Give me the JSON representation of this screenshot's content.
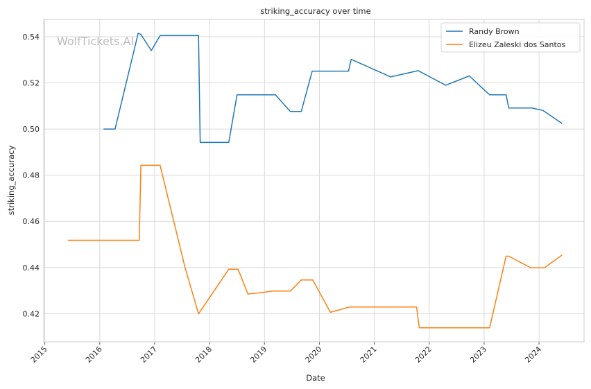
{
  "chart_data": {
    "type": "line",
    "title": "striking_accuracy over time",
    "xlabel": "Date",
    "ylabel": "striking_accuracy",
    "watermark": "WolfTickets.AI",
    "xlim": [
      2014.98,
      2024.82
    ],
    "ylim": [
      0.4078,
      0.5475
    ],
    "x_ticks": [
      2015,
      2016,
      2017,
      2018,
      2019,
      2020,
      2021,
      2022,
      2023,
      2024
    ],
    "x_tick_labels": [
      "2015",
      "2016",
      "2017",
      "2018",
      "2019",
      "2020",
      "2021",
      "2022",
      "2023",
      "2024"
    ],
    "y_ticks": [
      0.42,
      0.44,
      0.46,
      0.48,
      0.5,
      0.52,
      0.54
    ],
    "y_tick_labels": [
      "0.42",
      "0.44",
      "0.46",
      "0.48",
      "0.50",
      "0.52",
      "0.54"
    ],
    "grid": true,
    "legend_position": "top-right",
    "series": [
      {
        "name": "Randy Brown",
        "color": "#1f77b4",
        "points": [
          [
            2016.07,
            0.5
          ],
          [
            2016.28,
            0.5
          ],
          [
            2016.7,
            0.5415
          ],
          [
            2016.75,
            0.541
          ],
          [
            2016.94,
            0.534
          ],
          [
            2017.1,
            0.5405
          ],
          [
            2017.8,
            0.5405
          ],
          [
            2017.83,
            0.4942
          ],
          [
            2018.35,
            0.4942
          ],
          [
            2018.5,
            0.5148
          ],
          [
            2019.2,
            0.5148
          ],
          [
            2019.47,
            0.5076
          ],
          [
            2019.67,
            0.5076
          ],
          [
            2019.87,
            0.5251
          ],
          [
            2020.53,
            0.5251
          ],
          [
            2020.58,
            0.5302
          ],
          [
            2021.3,
            0.5226
          ],
          [
            2021.8,
            0.5253
          ],
          [
            2022.3,
            0.519
          ],
          [
            2022.73,
            0.523
          ],
          [
            2023.1,
            0.5148
          ],
          [
            2023.4,
            0.5148
          ],
          [
            2023.45,
            0.5091
          ],
          [
            2023.87,
            0.5091
          ],
          [
            2024.07,
            0.5081
          ],
          [
            2024.42,
            0.5024
          ]
        ]
      },
      {
        "name": "Elizeu Zaleski dos Santos",
        "color": "#ff7f0e",
        "points": [
          [
            2015.42,
            0.4518
          ],
          [
            2016.72,
            0.4518
          ],
          [
            2016.75,
            0.4843
          ],
          [
            2017.1,
            0.4843
          ],
          [
            2017.55,
            0.4403
          ],
          [
            2017.8,
            0.4199
          ],
          [
            2018.35,
            0.4393
          ],
          [
            2018.52,
            0.4393
          ],
          [
            2018.7,
            0.4285
          ],
          [
            2019.0,
            0.4293
          ],
          [
            2019.15,
            0.4298
          ],
          [
            2019.47,
            0.4298
          ],
          [
            2019.67,
            0.4346
          ],
          [
            2019.88,
            0.4346
          ],
          [
            2020.2,
            0.4206
          ],
          [
            2020.55,
            0.4229
          ],
          [
            2021.77,
            0.4229
          ],
          [
            2021.82,
            0.4139
          ],
          [
            2023.1,
            0.4139
          ],
          [
            2023.4,
            0.4449
          ],
          [
            2023.45,
            0.4449
          ],
          [
            2023.85,
            0.4399
          ],
          [
            2024.1,
            0.4399
          ],
          [
            2024.42,
            0.4454
          ]
        ]
      }
    ]
  }
}
